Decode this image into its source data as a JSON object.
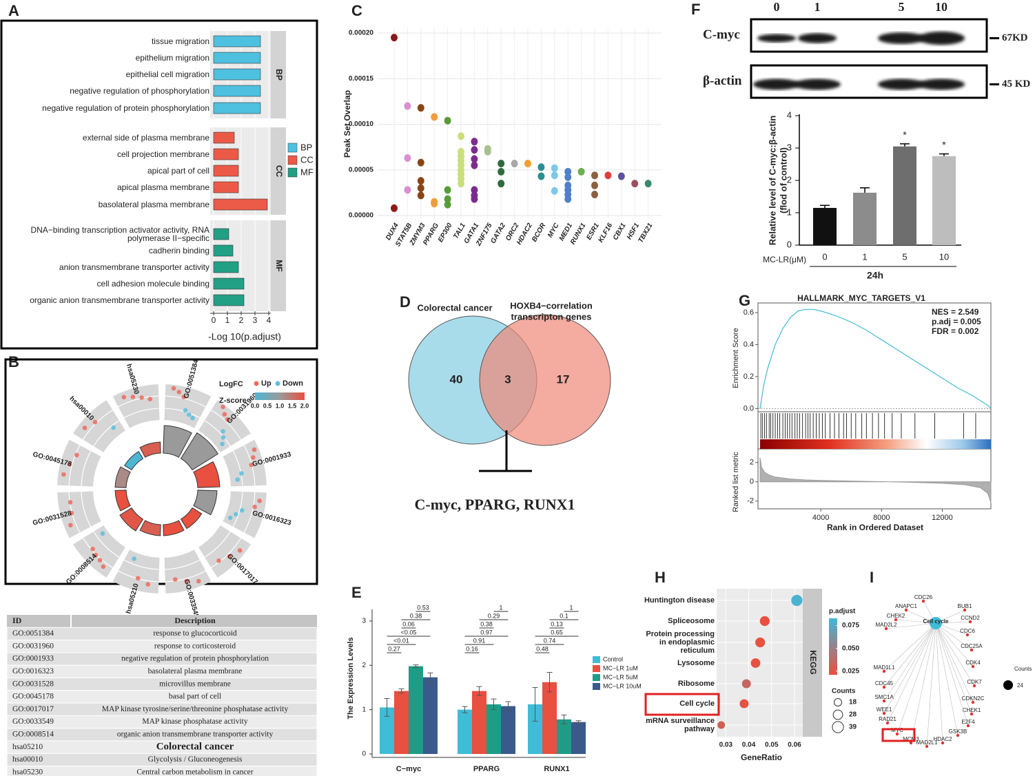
{
  "panel_labels": [
    "A",
    "B",
    "C",
    "D",
    "E",
    "F",
    "G",
    "H",
    "I"
  ],
  "chart_data": [
    {
      "type": "hbar-facet",
      "xlabel": "-Log 10(p.adjust)",
      "xlim": [
        0,
        4
      ],
      "xticks": [
        0,
        1,
        2,
        3,
        4
      ],
      "grid": true,
      "series": [
        {
          "name": "BP",
          "color": "#4ec0e0",
          "categories": [
            "tissue migration",
            "epithelium migration",
            "epithelial cell migration",
            "negative regulation of phosphorylation",
            "negative regulation of protein phosphorylation"
          ],
          "values": [
            3.4,
            3.4,
            3.4,
            3.4,
            3.4
          ]
        },
        {
          "name": "CC",
          "color": "#eb5a47",
          "categories": [
            "external side of plasma membrane",
            "cell projection membrane",
            "apical part of cell",
            "apical plasma membrane",
            "basolateral plasma membrane"
          ],
          "values": [
            1.5,
            1.8,
            1.8,
            1.8,
            3.9
          ]
        },
        {
          "name": "MF",
          "color": "#22a085",
          "categories": [
            "DNA−binding transcription activator activity, RNA polymerase II−specific",
            "cadherin binding",
            "anion transmembrane transporter activity",
            "cell adhesion molecule binding",
            "organic anion transmembrane transporter activity"
          ],
          "values": [
            1.1,
            1.4,
            1.8,
            2.2,
            2.2
          ]
        }
      ]
    },
    {
      "type": "strip",
      "ylabel": "Peak Set Overlap",
      "ylim": [
        0,
        0.0002
      ],
      "yticks": [
        {
          "value": 0,
          "label": "0.00000"
        },
        {
          "value": 5e-05,
          "label": "0.00005"
        },
        {
          "value": 0.0001,
          "label": "0.00010"
        },
        {
          "value": 0.00015,
          "label": "0.00015"
        },
        {
          "value": 0.0002,
          "label": "0.00020"
        }
      ],
      "grid": true,
      "categories": [
        "DUX4",
        "STAT5B",
        "ZMYM3",
        "PPARG",
        "EP300",
        "TAL1",
        "GATA1",
        "ZNF175",
        "GATA2",
        "ORC2",
        "HDAC2",
        "BCOR",
        "MYC",
        "MED1",
        "RUNX1",
        "ESR1",
        "KLF16",
        "CBX1",
        "HSF1",
        "TBX21"
      ],
      "colors": [
        "#8b1a1a",
        "#d98fd0",
        "#8b4513",
        "#f39c3c",
        "#5a9b3c",
        "#c9e07a",
        "#7b2d8e",
        "#a8c090",
        "#2d6b3c",
        "#a8a8a8",
        "#f0a030",
        "#2a9090",
        "#7ec8e8",
        "#5080c8",
        "#6ab04c",
        "#8b6040",
        "#e04040",
        "#6050a0",
        "#9b5060",
        "#3a8a6a"
      ],
      "values": [
        [
          0.000195,
          8e-06
        ],
        [
          0.00012,
          6.3e-05,
          2.8e-05
        ],
        [
          0.000118,
          5.8e-05,
          3.8e-05,
          3e-05,
          2.2e-05
        ],
        [
          0.000108,
          1.5e-05,
          1.3e-05
        ],
        [
          0.000104,
          2.8e-05,
          1.8e-05,
          1.2e-05
        ],
        [
          8.7e-05,
          7e-05,
          6.5e-05,
          6e-05,
          5.5e-05,
          5e-05,
          4.5e-05,
          4e-05,
          3.5e-05
        ],
        [
          8.1e-05,
          7.2e-05,
          6.2e-05,
          5.5e-05,
          2.8e-05,
          2.2e-05,
          1.8e-05
        ],
        [
          7.3e-05,
          7e-05
        ],
        [
          5.7e-05,
          4.8e-05,
          3.5e-05
        ],
        [
          5.7e-05
        ],
        [
          5.7e-05
        ],
        [
          5.3e-05,
          4.3e-05
        ],
        [
          5.2e-05,
          4.4e-05,
          2.7e-05
        ],
        [
          4.8e-05,
          4.2e-05,
          3.3e-05,
          2.8e-05,
          2.3e-05,
          1.8e-05
        ],
        [
          4.8e-05
        ],
        [
          4.4e-05,
          3.3e-05,
          2.3e-05
        ],
        [
          4.4e-05
        ],
        [
          4.3e-05
        ],
        [
          3.5e-05
        ],
        [
          3.5e-05
        ]
      ]
    },
    {
      "type": "grouped-bar",
      "ylabel": "The Expression Levels",
      "ylim": [
        0,
        3.2
      ],
      "yticks": [
        0,
        1,
        2,
        3
      ],
      "categories": [
        "C−myc",
        "PPARG",
        "RUNX1"
      ],
      "series": [
        {
          "name": "Control",
          "color": "#3fbcd6",
          "values": [
            1.05,
            1.0,
            1.12
          ],
          "errors": [
            0.2,
            0.07,
            0.38
          ]
        },
        {
          "name": "MC−LR 1uM",
          "color": "#e8503f",
          "values": [
            1.42,
            1.42,
            1.62
          ],
          "errors": [
            0.05,
            0.1,
            0.22
          ]
        },
        {
          "name": "MC−LR 5uM",
          "color": "#1e9c86",
          "values": [
            1.98,
            1.12,
            0.78
          ],
          "errors": [
            0.03,
            0.12,
            0.1
          ]
        },
        {
          "name": "MC−LR 10uM",
          "color": "#3a5a8c",
          "values": [
            1.73,
            1.08,
            0.72
          ],
          "errors": [
            0.1,
            0.1,
            0.03
          ]
        }
      ],
      "comparisons": [
        [
          "0.27",
          "<0.01",
          "<0.05",
          "0.06",
          "0.38",
          "0.53"
        ],
        [
          "0.16",
          "0.91",
          "0.97",
          "0.38",
          "0.29",
          "1"
        ],
        [
          "0.48",
          "0.74",
          "0.65",
          "0.13",
          "0.1",
          "1"
        ]
      ]
    },
    {
      "type": "bar",
      "ylabel": [
        "Relative level of C-myc:β-actin",
        "(flod of control)"
      ],
      "xlabel": "MC-LR(μM)",
      "group_label": "24h",
      "ylim": [
        0,
        4
      ],
      "yticks": [
        0,
        1,
        2,
        3,
        4
      ],
      "categories": [
        "0",
        "1",
        "5",
        "10"
      ],
      "values": [
        1.15,
        1.62,
        3.05,
        2.75
      ],
      "errors": [
        0.08,
        0.15,
        0.08,
        0.07
      ],
      "colors": [
        "#111111",
        "#8c8c8c",
        "#6e6e6e",
        "#bdbdbd"
      ],
      "significance": [
        null,
        null,
        "*",
        "*"
      ]
    },
    {
      "type": "gsea",
      "title": "HALLMARK_MYC_TARGETS_V1",
      "ylabel": "Enrichment Score",
      "metric_label": "Ranked list metric",
      "xlabel": "Rank in Ordered Dataset",
      "stats": [
        "NES = 2.549",
        "p.adj = 0.005",
        "FDR = 0.002"
      ],
      "xlim": [
        0,
        15200
      ],
      "xticks": [
        4000,
        8000,
        12000
      ],
      "ylim": [
        -0.02,
        0.66
      ],
      "yticks": [
        {
          "value": 0,
          "label": "0.0"
        },
        {
          "value": 0.2,
          "label": "0.2"
        },
        {
          "value": 0.4,
          "label": "0.4"
        },
        {
          "value": 0.6,
          "label": "0.6"
        }
      ],
      "x": [
        0,
        250,
        500,
        1000,
        1500,
        2000,
        2500,
        3000,
        3500,
        4000,
        5000,
        6000,
        7000,
        8000,
        9000,
        10000,
        11000,
        12000,
        13000,
        14000,
        14500,
        15000,
        15200
      ],
      "values": [
        0,
        0.15,
        0.25,
        0.4,
        0.5,
        0.57,
        0.61,
        0.62,
        0.62,
        0.61,
        0.58,
        0.54,
        0.49,
        0.43,
        0.37,
        0.31,
        0.25,
        0.19,
        0.13,
        0.08,
        0.05,
        0.02,
        0
      ],
      "hits": [
        50,
        150,
        300,
        420,
        600,
        700,
        850,
        1000,
        1150,
        1300,
        1500,
        1650,
        1800,
        1950,
        2100,
        2300,
        2450,
        2600,
        2800,
        3000,
        3150,
        3300,
        3500,
        3700,
        3900,
        4100,
        4300,
        4600,
        4900,
        5200,
        5500,
        5700,
        6000,
        6300,
        6700,
        7000,
        7400,
        7800,
        8200,
        8700,
        9300,
        10200,
        11500,
        13400,
        14200
      ],
      "metric_x": [
        0,
        100,
        300,
        600,
        1000,
        2000,
        3000,
        4000,
        6000,
        8000,
        10000,
        12000,
        13500,
        14500,
        15000,
        15200
      ],
      "metric": [
        2.5,
        1.5,
        1.0,
        0.7,
        0.5,
        0.3,
        0.2,
        0.15,
        0.08,
        0.02,
        -0.05,
        -0.15,
        -0.3,
        -0.6,
        -1.2,
        -2.2
      ],
      "metric_ylim": [
        -2.8,
        3.2
      ],
      "metric_yticks": [
        2,
        0,
        -2
      ]
    },
    {
      "type": "dot",
      "xlabel": "GeneRatio",
      "strip": "KEGG",
      "xlim": [
        0.026,
        0.063
      ],
      "xticks": [
        0.03,
        0.04,
        0.05,
        0.06
      ],
      "categories": [
        "Huntington disease",
        "Spliceosome",
        "Protein processing in endoplasmic reticulum",
        "Lysosome",
        "Ribosome",
        "Cell cycle",
        "mRNA surveillance pathway"
      ],
      "values": [
        0.061,
        0.047,
        0.045,
        0.043,
        0.039,
        0.038,
        0.028
      ],
      "sizes": [
        39,
        30,
        30,
        28,
        25,
        25,
        18
      ],
      "padj": [
        0.08,
        0.02,
        0.022,
        0.02,
        0.035,
        0.022,
        0.03
      ],
      "color_title": "p.adjust",
      "clim": [
        0.021,
        0.083
      ],
      "color_low": "#e8503f",
      "color_high": "#44b7d8",
      "cticks": [
        {
          "value": 0.075,
          "label": "0.075"
        },
        {
          "value": 0.05,
          "label": "0.050"
        },
        {
          "value": 0.025,
          "label": "0.025"
        }
      ],
      "size_title": "Counts",
      "size_ticks": [
        18,
        28,
        39
      ]
    }
  ],
  "circle": {
    "legend_title": "LogFC",
    "up": "Up",
    "down": "Down",
    "z_title": "Z-score",
    "z_labels": [
      "0.0",
      "0.5",
      "1.0",
      "1.5",
      "2.0"
    ],
    "terms": [
      {
        "id": "GO:0051384",
        "logfc": [
          1.5,
          1.2,
          0.8,
          -0.5,
          -0.8,
          -1.0
        ],
        "count": 10,
        "zscore": 1.0
      },
      {
        "id": "GO:0031960",
        "logfc": [
          1.6,
          1.1,
          0.9,
          -0.3,
          -0.7,
          -1.2
        ],
        "count": 11,
        "zscore": 1.0
      },
      {
        "id": "GO:0001933",
        "logfc": [
          1.4,
          1.0,
          0.6,
          -0.6,
          -1.1
        ],
        "count": 8,
        "zscore": 2.0
      },
      {
        "id": "GO:0016323",
        "logfc": [
          1.2,
          0.8,
          -0.4,
          -0.9,
          -1.3
        ],
        "count": 7,
        "zscore": 1.0
      },
      {
        "id": "GO:0017017",
        "logfc": [
          1.3,
          0.9,
          0.5
        ],
        "count": 4,
        "zscore": 2.0
      },
      {
        "id": "GO:0033549",
        "logfc": [
          1.3,
          0.9,
          0.5
        ],
        "count": 4,
        "zscore": 2.0
      },
      {
        "id": "hsa05210",
        "logfc": [
          1.0,
          0.6,
          -1.2
        ],
        "count": 4,
        "zscore": 1.8
      },
      {
        "id": "GO:0008514",
        "logfc": [
          1.1,
          0.8,
          0.7,
          0.5,
          -1.3
        ],
        "count": 5,
        "zscore": 1.9
      },
      {
        "id": "GO:0031528",
        "logfc": [
          1.2,
          0.7,
          0.6
        ],
        "count": 4,
        "zscore": 2.0
      },
      {
        "id": "GO:0045178",
        "logfc": [
          1.3,
          0.9,
          0.5
        ],
        "count": 4,
        "zscore": 1.2
      },
      {
        "id": "hsa00010",
        "logfc": [
          1.2,
          0.8,
          -0.9
        ],
        "count": 3,
        "zscore": 0.0
      },
      {
        "id": "hsa05230",
        "logfc": [
          1.3,
          1.0,
          0.7,
          0.4
        ],
        "count": 4,
        "zscore": 1.8
      }
    ]
  },
  "table": {
    "header": [
      "ID",
      "Description"
    ],
    "rows": [
      [
        "GO:0051384",
        "response to glucocorticoid"
      ],
      [
        "GO:0031960",
        "response to corticosteroid"
      ],
      [
        "GO:0001933",
        "negative regulation of protein phosphorylation"
      ],
      [
        "GO:0016323",
        "basolateral plasma membrane"
      ],
      [
        "GO:0031528",
        "microvillus membrane"
      ],
      [
        "GO:0045178",
        "basal part of cell"
      ],
      [
        "GO:0017017",
        "MAP kinase tyrosine/serine/threonine phosphatase activity"
      ],
      [
        "GO:0033549",
        "MAP kinase phosphatase activity"
      ],
      [
        "GO:0008514",
        "organic anion transmembrane transporter activity"
      ],
      [
        "hsa05210",
        "Colorectal cancer"
      ],
      [
        "hsa00010",
        "Glycolysis / Gluconeogenesis"
      ],
      [
        "hsa05230",
        "Central carbon metabolism in cancer"
      ]
    ]
  },
  "venn": {
    "left_label": "Colorectal cancer",
    "right_label": [
      "HOXB4−correlation",
      "transcripton genes"
    ],
    "left_only": "40",
    "both": "3",
    "right_only": "17",
    "result": "C-myc,  PPARG, RUNX1"
  },
  "blot": {
    "lanes": [
      "0",
      "1",
      "5",
      "10"
    ],
    "bands": [
      {
        "name": "C-myc",
        "size": "67KD"
      },
      {
        "name": "β-actin",
        "size": "45 KD"
      }
    ]
  },
  "network": {
    "hub": "Cell cycle",
    "genes": [
      "CDC26",
      "ANAPC1",
      "BUB1",
      "CHEK2",
      "CCND2",
      "MAD2L2",
      "CDC6",
      "CDC25A",
      "MAD1L1",
      "CDK4",
      "CDC45",
      "CDK7",
      "SMC1A",
      "CDKN2C",
      "CHEK1",
      "WEE1",
      "E2F4",
      "RAD21",
      "GSK3B",
      "MYC",
      "HDAC2",
      "MCM3",
      "MAD2L1"
    ],
    "legend_title": "Counts",
    "legend_value": 24
  }
}
